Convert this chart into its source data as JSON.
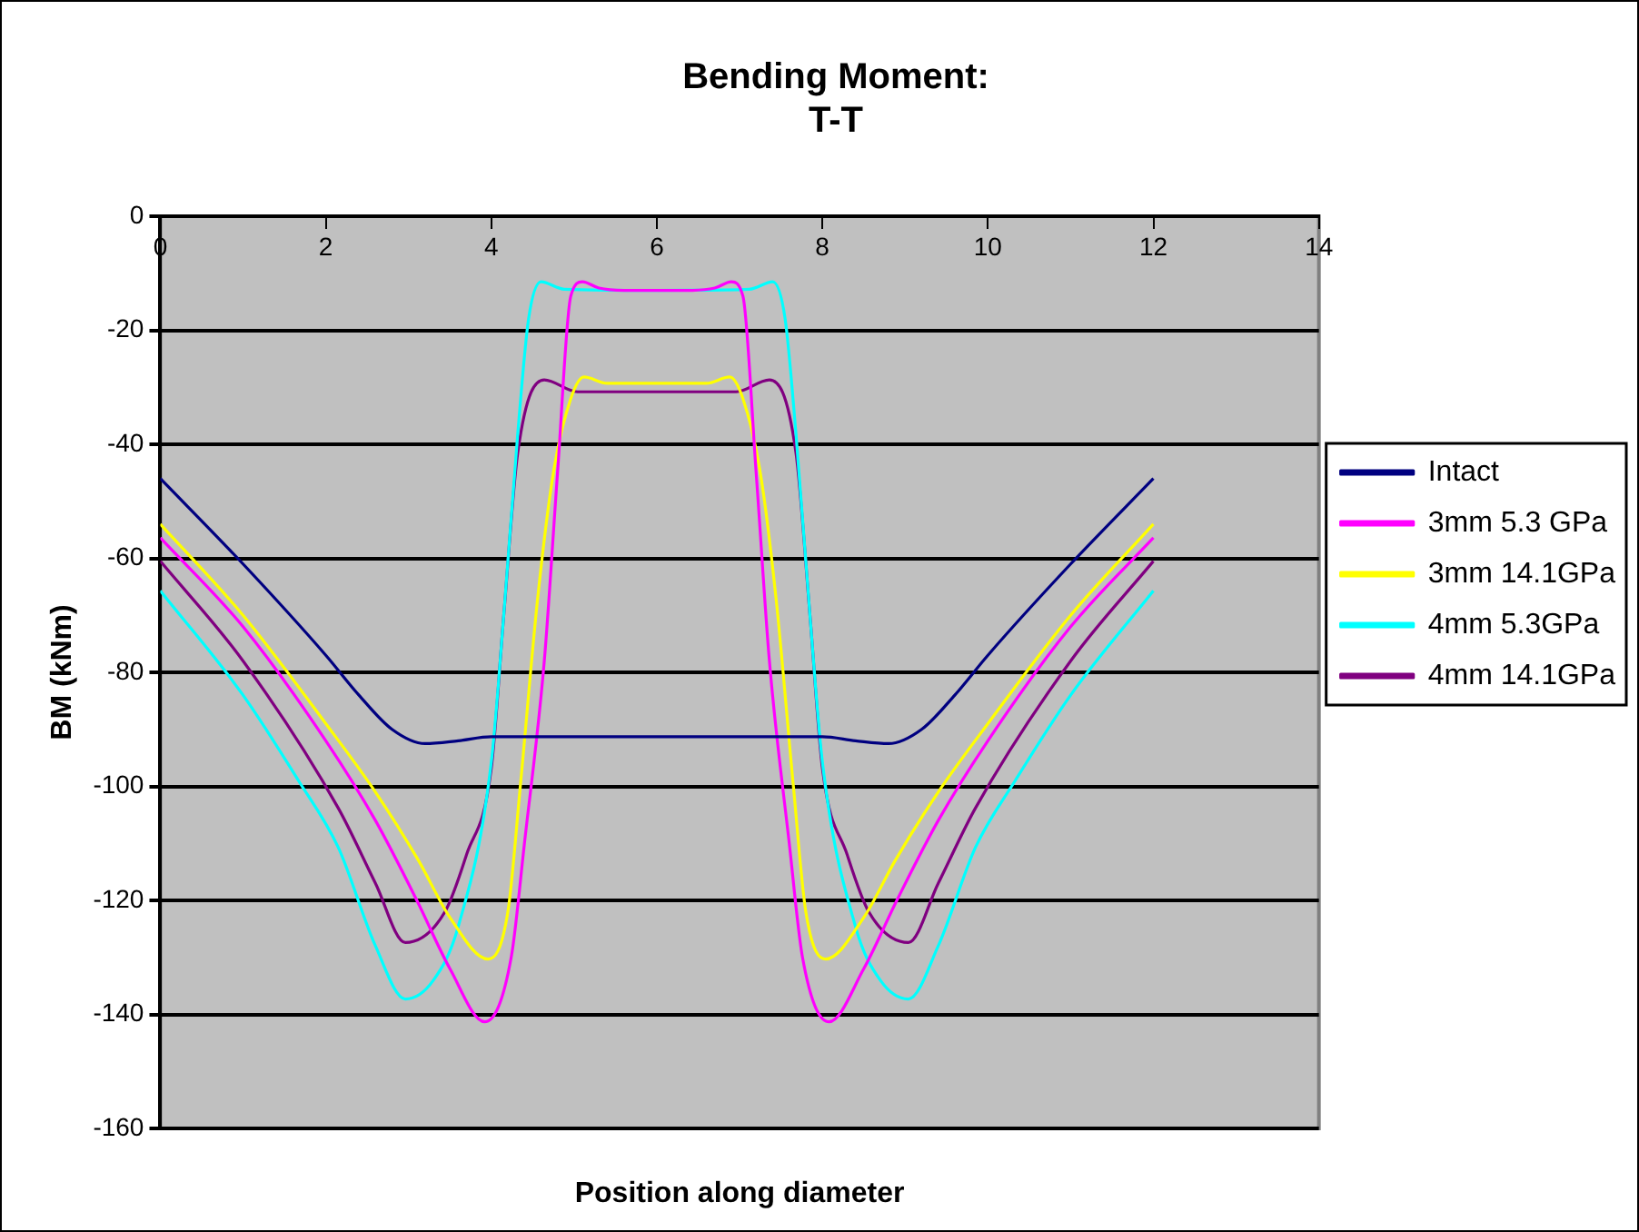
{
  "chart_data": {
    "type": "line",
    "title": "Bending Moment:\nT-T",
    "xlabel": "Position along diameter",
    "ylabel": "BM (kNm)",
    "xlim": [
      0,
      14
    ],
    "xticks": [
      0,
      2,
      4,
      6,
      8,
      10,
      12,
      14
    ],
    "ylim": [
      -160,
      0
    ],
    "yticks": [
      0,
      -20,
      -40,
      -60,
      -80,
      -100,
      -120,
      -140,
      -160
    ],
    "grid": "y",
    "legend": "right",
    "marker": "none",
    "line_style": "solid",
    "series": [
      {
        "name": "Intact",
        "color": "#000080",
        "x": [
          0,
          1,
          2,
          2.4,
          2.8,
          3.2,
          3.6,
          4,
          8,
          8.4,
          8.8,
          9.2,
          9.6,
          10,
          11,
          12
        ],
        "values": [
          -46,
          -61,
          -77,
          -84,
          -90,
          -92.5,
          -92,
          -91.3,
          -91.3,
          -92,
          -92.5,
          -90,
          -84,
          -77,
          -61,
          -46
        ]
      },
      {
        "name": "3mm 5.3 GPa",
        "color": "#ff00ff",
        "x": [
          0,
          1,
          2,
          2.6,
          3.1,
          3.5,
          3.92,
          4.24,
          4.4,
          4.64,
          4.8,
          4.96,
          5.1,
          5.3,
          5.6,
          6,
          6.4,
          6.7,
          6.9,
          7.04,
          7.2,
          7.36,
          7.6,
          7.76,
          8.08,
          8.5,
          8.9,
          9.4,
          10,
          11,
          12
        ],
        "values": [
          -56.4,
          -72,
          -92,
          -106,
          -120,
          -132,
          -141.3,
          -130,
          -110,
          -78,
          -45,
          -14,
          -11.5,
          -12.6,
          -13,
          -13,
          -13,
          -12.6,
          -11.5,
          -14,
          -45,
          -78,
          -110,
          -130,
          -141.3,
          -132,
          -120,
          -106,
          -92,
          -72,
          -56.4
        ]
      },
      {
        "name": "3mm 14.1GPa",
        "color": "#ffff00",
        "x": [
          0,
          1,
          2,
          2.6,
          3.12,
          3.5,
          3.96,
          4.2,
          4.35,
          4.56,
          4.75,
          4.96,
          5.12,
          5.4,
          6,
          6.6,
          6.88,
          7.04,
          7.25,
          7.44,
          7.65,
          7.8,
          8.04,
          8.5,
          8.88,
          9.4,
          10,
          11,
          12
        ],
        "values": [
          -54,
          -70,
          -89,
          -101,
          -113,
          -123,
          -130.3,
          -122,
          -100,
          -67,
          -45,
          -32,
          -28.2,
          -29.3,
          -29.3,
          -29.3,
          -28.2,
          -32,
          -45,
          -67,
          -100,
          -122,
          -130.3,
          -123,
          -113,
          -101,
          -89,
          -70,
          -54
        ]
      },
      {
        "name": "4mm 5.3GPa",
        "color": "#00ffff",
        "x": [
          0,
          1,
          1.67,
          2.15,
          2.6,
          2.96,
          3.3,
          3.6,
          4,
          4.15,
          4.32,
          4.45,
          4.6,
          4.88,
          6,
          7.12,
          7.4,
          7.55,
          7.68,
          7.85,
          8,
          8.4,
          8.7,
          9.04,
          9.4,
          9.85,
          10.33,
          11,
          12
        ],
        "values": [
          -65.7,
          -84,
          -99,
          -110.7,
          -128,
          -137.3,
          -134,
          -124.6,
          -95.7,
          -70,
          -38,
          -18,
          -11.5,
          -12.8,
          -13,
          -12.8,
          -11.5,
          -18,
          -38,
          -70,
          -95.7,
          -124.6,
          -134,
          -137.3,
          -128,
          -110.7,
          -99,
          -84,
          -65.7
        ]
      },
      {
        "name": "4mm 14.1GPa",
        "color": "#800080",
        "x": [
          0,
          1,
          2.15,
          2.6,
          2.96,
          3.44,
          3.7,
          4,
          4.15,
          4.32,
          4.64,
          5.04,
          6,
          6.96,
          7.36,
          7.68,
          7.85,
          8,
          8.3,
          8.56,
          9.04,
          9.4,
          9.85,
          11,
          12
        ],
        "values": [
          -60.5,
          -78,
          -103.8,
          -117,
          -127.4,
          -122,
          -112,
          -96.8,
          -70,
          -41.4,
          -28.7,
          -30.8,
          -30.8,
          -30.8,
          -28.7,
          -41.4,
          -70,
          -96.8,
          -112,
          -122,
          -127.4,
          -117,
          -103.8,
          -78,
          -60.5
        ]
      }
    ]
  }
}
